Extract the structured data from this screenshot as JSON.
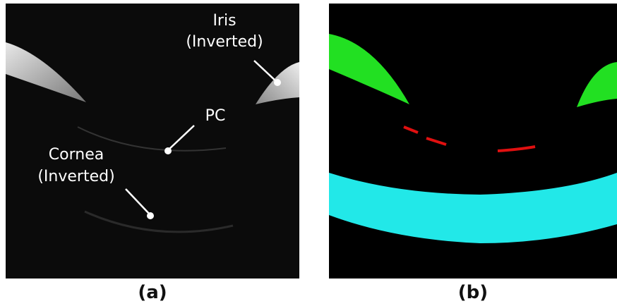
{
  "panels": [
    {
      "label": "(a)",
      "annotations": [
        {
          "lines": [
            "Iris",
            "(Inverted)"
          ]
        },
        {
          "lines": [
            "PC"
          ]
        },
        {
          "lines": [
            "Cornea",
            "(Inverted)"
          ]
        }
      ]
    },
    {
      "label": "(b)"
    }
  ]
}
